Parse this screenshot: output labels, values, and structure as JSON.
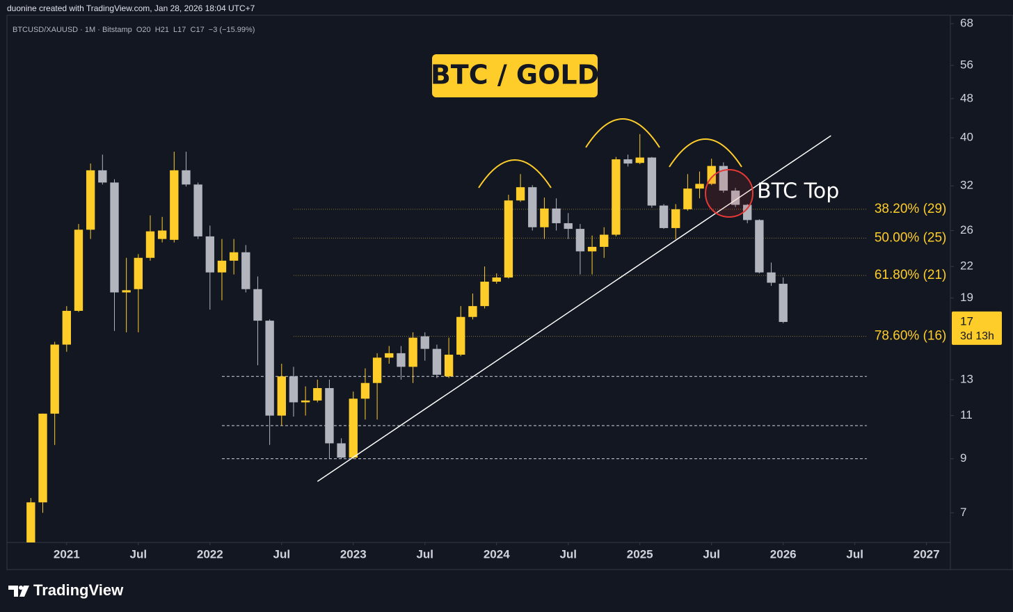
{
  "chart_data": {
    "type": "candlestick",
    "title": "BTC / GOLD",
    "subtitle": "BTCUSD/XAUUSD · 1M · Bitstamp  O20  H21  L17  C17  −3 (−15.99%)",
    "credit": "duonine created with TradingView.com, Jan 28, 2026 18:04 UTC+7",
    "brand": "TradingView",
    "annotation": "BTC Top",
    "countdown": "3d 13h",
    "up_color": "#ffcd2a",
    "down_color": "#b2b5be",
    "log_scale": true,
    "grid": false,
    "x": [
      "2020-10",
      "2020-11",
      "2020-12",
      "2021-01",
      "2021-02",
      "2021-03",
      "2021-04",
      "2021-05",
      "2021-06",
      "2021-07",
      "2021-08",
      "2021-09",
      "2021-10",
      "2021-11",
      "2021-12",
      "2022-01",
      "2022-02",
      "2022-03",
      "2022-04",
      "2022-05",
      "2022-06",
      "2022-07",
      "2022-08",
      "2022-09",
      "2022-10",
      "2022-11",
      "2022-12",
      "2023-01",
      "2023-02",
      "2023-03",
      "2023-04",
      "2023-05",
      "2023-06",
      "2023-07",
      "2023-08",
      "2023-09",
      "2023-10",
      "2023-11",
      "2023-12",
      "2024-01",
      "2024-02",
      "2024-03",
      "2024-04",
      "2024-05",
      "2024-06",
      "2024-07",
      "2024-08",
      "2024-09",
      "2024-10",
      "2024-11",
      "2024-12",
      "2025-01",
      "2025-02",
      "2025-03",
      "2025-04",
      "2025-05",
      "2025-06",
      "2025-07",
      "2025-08",
      "2025-09",
      "2025-10",
      "2025-11",
      "2025-12",
      "2026-01"
    ],
    "open": [
      6.1,
      7.35,
      11.1,
      15.3,
      17.9,
      26.1,
      34.4,
      32.5,
      19.5,
      19.8,
      22.9,
      25.0,
      24.9,
      34.4,
      32.2,
      25.3,
      21.4,
      22.6,
      23.5,
      19.8,
      17.1,
      11.0,
      13.2,
      11.7,
      11.8,
      12.5,
      9.67,
      9.05,
      11.9,
      12.8,
      14.4,
      14.7,
      13.8,
      15.9,
      15.0,
      13.2,
      14.6,
      17.4,
      18.3,
      20.5,
      20.9,
      29.9,
      31.8,
      26.4,
      28.8,
      26.9,
      26.2,
      23.6,
      24.1,
      25.5,
      36.2,
      35.6,
      36.5,
      29.2,
      26.3,
      28.7,
      31.6,
      32.3,
      35.1,
      31.3,
      29.3,
      27.3,
      21.4,
      20.3
    ],
    "high": [
      7.5,
      11.1,
      15.5,
      18.3,
      26.8,
      35.5,
      37.0,
      33.0,
      22.9,
      23.3,
      27.9,
      27.7,
      37.5,
      37.5,
      32.5,
      26.6,
      25.0,
      25.0,
      24.3,
      21.0,
      17.2,
      14.0,
      13.8,
      12.6,
      13.0,
      13.0,
      9.9,
      12.3,
      13.7,
      14.7,
      15.2,
      15.2,
      16.2,
      16.2,
      15.3,
      15.8,
      18.3,
      19.4,
      22.0,
      21.3,
      30.7,
      33.8,
      32.1,
      30.3,
      30.2,
      28.2,
      26.8,
      25.4,
      26.4,
      36.6,
      37.0,
      40.7,
      36.6,
      29.4,
      29.4,
      33.8,
      34.2,
      36.3,
      35.7,
      31.7,
      29.4,
      27.4,
      22.4,
      20.9
    ],
    "low": [
      6.1,
      7.0,
      9.6,
      14.8,
      17.8,
      25.0,
      32.2,
      16.3,
      16.2,
      16.2,
      22.6,
      24.6,
      24.6,
      31.9,
      25.0,
      18.0,
      18.8,
      21.2,
      19.5,
      13.9,
      9.6,
      10.5,
      10.95,
      11.0,
      11.7,
      9.0,
      9.0,
      9.0,
      10.8,
      10.8,
      14.0,
      13.0,
      12.8,
      14.2,
      13.1,
      13.1,
      14.5,
      17.2,
      18.1,
      20.3,
      20.8,
      29.7,
      26.0,
      25.0,
      26.0,
      25.0,
      21.2,
      21.2,
      22.9,
      25.3,
      35.0,
      35.4,
      28.9,
      26.2,
      25.0,
      28.5,
      30.2,
      32.1,
      31.0,
      29.0,
      26.9,
      21.3,
      20.1,
      16.9
    ],
    "close": [
      7.35,
      11.1,
      15.3,
      17.9,
      26.1,
      34.4,
      32.5,
      19.5,
      19.7,
      22.9,
      25.9,
      26.0,
      34.4,
      32.2,
      25.3,
      21.4,
      22.6,
      23.5,
      19.8,
      17.1,
      11.0,
      13.2,
      11.7,
      11.8,
      12.5,
      9.67,
      9.05,
      11.9,
      12.8,
      14.4,
      14.7,
      13.8,
      15.8,
      15.0,
      13.3,
      14.6,
      17.4,
      18.3,
      20.5,
      20.9,
      29.9,
      31.8,
      26.4,
      28.8,
      26.9,
      26.2,
      23.6,
      24.1,
      25.5,
      36.2,
      35.5,
      36.5,
      29.2,
      26.3,
      28.7,
      31.6,
      32.3,
      35.1,
      31.3,
      29.3,
      27.3,
      21.4,
      20.4,
      17
    ],
    "xlim": [
      "2020-08",
      "2027-03"
    ],
    "xticks": [
      {
        "value": "2021-01",
        "label": "2021"
      },
      {
        "value": "2021-07",
        "label": "Jul"
      },
      {
        "value": "2022-01",
        "label": "2022"
      },
      {
        "value": "2022-07",
        "label": "Jul"
      },
      {
        "value": "2023-01",
        "label": "2023"
      },
      {
        "value": "2023-07",
        "label": "Jul"
      },
      {
        "value": "2024-01",
        "label": "2024"
      },
      {
        "value": "2024-07",
        "label": "Jul"
      },
      {
        "value": "2025-01",
        "label": "2025"
      },
      {
        "value": "2025-07",
        "label": "Jul"
      },
      {
        "value": "2026-01",
        "label": "2026"
      },
      {
        "value": "2026-07",
        "label": "Jul"
      },
      {
        "value": "2027-01",
        "label": "2027"
      }
    ],
    "ylim": [
      6.1,
      70.7
    ],
    "yticks": [
      7,
      9,
      11,
      13,
      19,
      22,
      26,
      32,
      40,
      48,
      56,
      68
    ],
    "fib_x": [
      "2022-08",
      "2026-08"
    ],
    "fib_levels": [
      {
        "value": 28.7,
        "label": "38.20% (29)"
      },
      {
        "value": 25.1,
        "label": "50.00% (25)"
      },
      {
        "value": 21.1,
        "label": "61.80% (21)"
      },
      {
        "value": 15.9,
        "label": "78.60% (16)"
      }
    ],
    "levels_x": [
      "2022-02",
      "2026-08"
    ],
    "levels": [
      13.2,
      10.5,
      9.0
    ],
    "trendline": {
      "x": [
        "2022-10",
        "2026-05"
      ],
      "y": [
        8.1,
        40.4
      ]
    }
  }
}
